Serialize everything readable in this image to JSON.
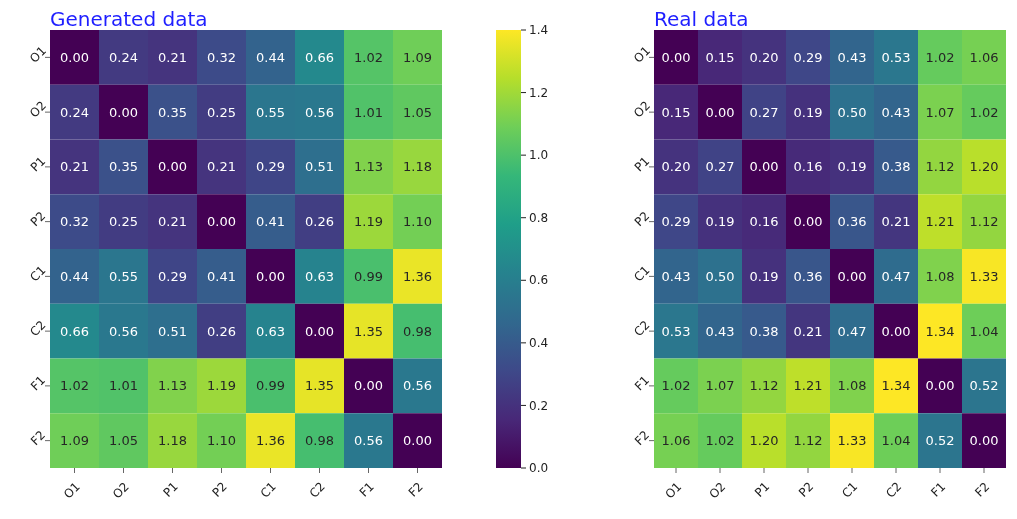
{
  "chart_data": [
    {
      "type": "heatmap",
      "title": "Generated data",
      "categories": [
        "O1",
        "O2",
        "P1",
        "P2",
        "C1",
        "C2",
        "F1",
        "F2"
      ],
      "y_categories": [
        "O1",
        "O2",
        "P1",
        "P2",
        "C1",
        "C2",
        "F1",
        "F2"
      ],
      "cells": [
        [
          0.0,
          0.24,
          0.21,
          0.32,
          0.44,
          0.66,
          1.02,
          1.09
        ],
        [
          0.24,
          0.0,
          0.35,
          0.25,
          0.55,
          0.56,
          1.01,
          1.05
        ],
        [
          0.21,
          0.35,
          0.0,
          0.21,
          0.29,
          0.51,
          1.13,
          1.18
        ],
        [
          0.32,
          0.25,
          0.21,
          0.0,
          0.41,
          0.26,
          1.19,
          1.1
        ],
        [
          0.44,
          0.55,
          0.29,
          0.41,
          0.0,
          0.63,
          0.99,
          1.36
        ],
        [
          0.66,
          0.56,
          0.51,
          0.26,
          0.63,
          0.0,
          1.35,
          0.98
        ],
        [
          1.02,
          1.01,
          1.13,
          1.19,
          0.99,
          1.35,
          0.0,
          0.56
        ],
        [
          1.09,
          1.05,
          1.18,
          1.1,
          1.36,
          0.98,
          0.56,
          0.0
        ]
      ],
      "cell_labels": [
        [
          "0.00",
          "0.24",
          "0.21",
          "0.32",
          "0.44",
          "0.66",
          "1.02",
          "1.09"
        ],
        [
          "0.24",
          "0.00",
          "0.35",
          "0.25",
          "0.55",
          "0.56",
          "1.01",
          "1.05"
        ],
        [
          "0.21",
          "0.35",
          "0.00",
          "0.21",
          "0.29",
          "0.51",
          "1.13",
          "1.18"
        ],
        [
          "0.32",
          "0.25",
          "0.21",
          "0.00",
          "0.41",
          "0.26",
          "1.19",
          "1.10"
        ],
        [
          "0.44",
          "0.55",
          "0.29",
          "0.41",
          "0.00",
          "0.63",
          "0.99",
          "1.36"
        ],
        [
          "0.66",
          "0.56",
          "0.51",
          "0.26",
          "0.63",
          "0.00",
          "1.35",
          "0.98"
        ],
        [
          "1.02",
          "1.01",
          "1.13",
          "1.19",
          "0.99",
          "1.35",
          "0.00",
          "0.56"
        ],
        [
          "1.09",
          "1.05",
          "1.18",
          "1.10",
          "1.36",
          "0.98",
          "0.56",
          "0.00"
        ]
      ],
      "clim": [
        0,
        1.4
      ],
      "cticks": [
        {
          "value": 0,
          "label": "0.0"
        },
        {
          "value": 0.2,
          "label": "0.2"
        },
        {
          "value": 0.4,
          "label": "0.4"
        },
        {
          "value": 0.6,
          "label": "0.6"
        },
        {
          "value": 0.8,
          "label": "0.8"
        },
        {
          "value": 1.0,
          "label": "1.0"
        },
        {
          "value": 1.2,
          "label": "1.2"
        },
        {
          "value": 1.4,
          "label": "1.4"
        }
      ]
    },
    {
      "type": "heatmap",
      "title": "Real data",
      "categories": [
        "O1",
        "O2",
        "P1",
        "P2",
        "C1",
        "C2",
        "F1",
        "F2"
      ],
      "y_categories": [
        "O1",
        "O2",
        "P1",
        "P2",
        "C1",
        "C2",
        "F1",
        "F2"
      ],
      "cells": [
        [
          0.0,
          0.15,
          0.2,
          0.29,
          0.43,
          0.53,
          1.02,
          1.06
        ],
        [
          0.15,
          0.0,
          0.27,
          0.19,
          0.5,
          0.43,
          1.07,
          1.02
        ],
        [
          0.2,
          0.27,
          0.0,
          0.16,
          0.19,
          0.38,
          1.12,
          1.2
        ],
        [
          0.29,
          0.19,
          0.16,
          0.0,
          0.36,
          0.21,
          1.21,
          1.12
        ],
        [
          0.43,
          0.5,
          0.19,
          0.36,
          0.0,
          0.47,
          1.08,
          1.33
        ],
        [
          0.53,
          0.43,
          0.38,
          0.21,
          0.47,
          0.0,
          1.34,
          1.04
        ],
        [
          1.02,
          1.07,
          1.12,
          1.21,
          1.08,
          1.34,
          0.0,
          0.52
        ],
        [
          1.06,
          1.02,
          1.2,
          1.12,
          1.33,
          1.04,
          0.52,
          0.0
        ]
      ],
      "cell_labels": [
        [
          "0.00",
          "0.15",
          "0.20",
          "0.29",
          "0.43",
          "0.53",
          "1.02",
          "1.06"
        ],
        [
          "0.15",
          "0.00",
          "0.27",
          "0.19",
          "0.50",
          "0.43",
          "1.07",
          "1.02"
        ],
        [
          "0.20",
          "0.27",
          "0.00",
          "0.16",
          "0.19",
          "0.38",
          "1.12",
          "1.20"
        ],
        [
          "0.29",
          "0.19",
          "0.16",
          "0.00",
          "0.36",
          "0.21",
          "1.21",
          "1.12"
        ],
        [
          "0.43",
          "0.50",
          "0.19",
          "0.36",
          "0.00",
          "0.47",
          "1.08",
          "1.33"
        ],
        [
          "0.53",
          "0.43",
          "0.38",
          "0.21",
          "0.47",
          "0.00",
          "1.34",
          "1.04"
        ],
        [
          "1.02",
          "1.07",
          "1.12",
          "1.21",
          "1.08",
          "1.34",
          "0.00",
          "0.52"
        ],
        [
          "1.06",
          "1.02",
          "1.20",
          "1.12",
          "1.33",
          "1.04",
          "0.52",
          "0.00"
        ]
      ]
    }
  ]
}
